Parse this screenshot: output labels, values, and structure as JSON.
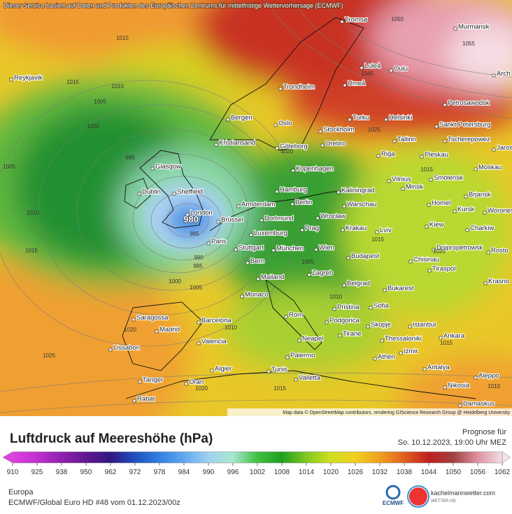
{
  "header": {
    "notice": "Dieser Service basiert auf Daten und Produkten des Europäischen Zentrums für mittelfristige Wettervorhersage (ECMWF)",
    "credit": "Map data © OpenStreetMap contributors, rendering GIScience Research Group @ Heidelberg University"
  },
  "map": {
    "low_center": "980",
    "cities": [
      "Tromsø",
      "Murmansk",
      "Reykjavik",
      "Luleå",
      "Oulu",
      "Umeå",
      "Trondheim",
      "Petrosawodsk",
      "Arch",
      "Bergen",
      "Turku",
      "Helsinki",
      "Oslo",
      "Stockholm",
      "Sankt Petersburg",
      "Tallinn",
      "Tscherepowez",
      "Kristiansand",
      "Göteborg",
      "Orebro",
      "Riga",
      "Pleskau",
      "Jaros",
      "Glasgow",
      "Kopenhagen",
      "Moskau",
      "Vilnius",
      "Smolensk",
      "Minsk",
      "Dublin",
      "Sheffield",
      "Hamburg",
      "Kaliningrad",
      "Brjansk",
      "Berlin",
      "Warschau",
      "Homel",
      "Kursk",
      "Woronesch",
      "Amsterdam",
      "London",
      "Dortmund",
      "Wrocław",
      "Brüssel",
      "Luxemburg",
      "Prag",
      "Krakau",
      "Kiew",
      "Lviv",
      "Charkiw",
      "Paris",
      "Stuttgart",
      "München",
      "Wien",
      "Dnipropetrowsk",
      "Rosto",
      "Budapest",
      "Chisinau",
      "Bern",
      "Tiraspol",
      "Zagreb",
      "Mailand",
      "Krasno",
      "Belgrad",
      "Bukarest",
      "Monaco",
      "Pristina",
      "Sofia",
      "Saragossa",
      "Rom",
      "Podgorica",
      "Barcelona",
      "Skopje",
      "Istanbul",
      "Madrid",
      "Tirane",
      "Ankara",
      "Thessaloniki",
      "Neapel",
      "Valencia",
      "Izmir",
      "Lissabon",
      "Palermo",
      "Athen",
      "Algier",
      "Tunis",
      "Antalya",
      "Valletta",
      "Aleppo",
      "Tanger",
      "Oran",
      "Nikosia",
      "Rabat",
      "Damaskus"
    ],
    "isobar_labels": [
      1050,
      1055,
      1015,
      1015,
      1010,
      1005,
      1000,
      1005,
      995,
      1010,
      1015,
      990,
      995,
      1000,
      1005,
      985,
      1020,
      1025,
      1020,
      1015,
      1010,
      1015,
      1010,
      1015,
      1005,
      1010,
      1020,
      1025,
      1020,
      1045,
      1015
    ]
  },
  "title": "Luftdruck auf Meereshöhe (hPa)",
  "forecast": {
    "label": "Prognose für",
    "time": "So. 10.12.2023, 19:00 Uhr MEZ"
  },
  "legend": {
    "ticks": [
      910,
      925,
      938,
      950,
      962,
      972,
      978,
      984,
      990,
      996,
      1002,
      1008,
      1014,
      1020,
      1026,
      1032,
      1038,
      1044,
      1050,
      1056,
      1062
    ],
    "colors": [
      "#e040e0",
      "#c030d0",
      "#9020b0",
      "#601890",
      "#301880",
      "#2050c0",
      "#3080e0",
      "#60a8f0",
      "#a0d0f0",
      "#a8e8d0",
      "#40c040",
      "#20a020",
      "#80c820",
      "#d0e020",
      "#f0d020",
      "#f0a020",
      "#e06020",
      "#c02020",
      "#a04040",
      "#e090a0",
      "#f0e0e8"
    ]
  },
  "footer": {
    "region": "Europa",
    "run": "ECMWF/Global Euro HD #48 vom  01.12.2023/00z",
    "logo_left": "ECMWF",
    "logo_right": "kachelmannwetter.com",
    "logo_right_sub": "WETTER HD"
  }
}
